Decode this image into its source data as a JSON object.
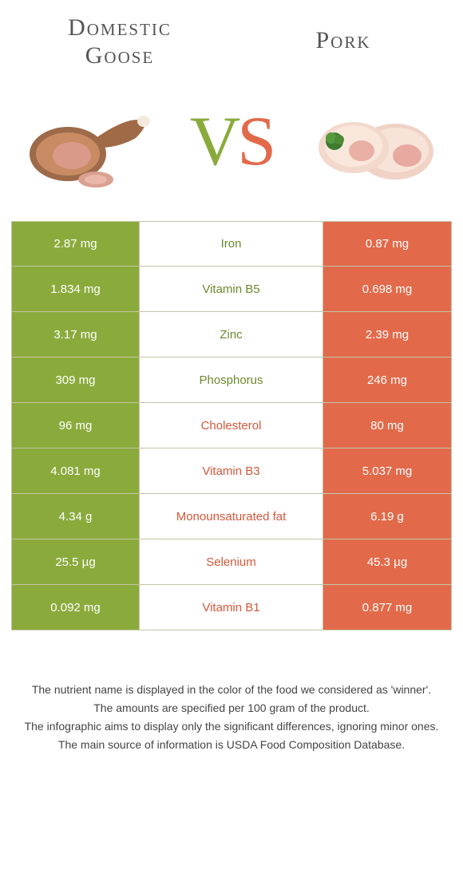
{
  "colors": {
    "green": "#8aab3c",
    "orange": "#e26a4a",
    "green_text": "#6a8a2d",
    "orange_text": "#d4583a",
    "border": "#c4c4a8",
    "body_text": "#444444",
    "title_text": "#555555",
    "background": "#ffffff"
  },
  "typography": {
    "title_font": "Georgia, serif",
    "title_size_pt": 22,
    "vs_size_pt": 66,
    "cell_size_pt": 11,
    "footer_size_pt": 10
  },
  "left": {
    "name": "Domestic\nGoose"
  },
  "right": {
    "name": "Pork"
  },
  "vs": {
    "v": "V",
    "s": "S"
  },
  "rows": [
    {
      "nutrient": "Iron",
      "left": "2.87 mg",
      "right": "0.87 mg",
      "winner": "left"
    },
    {
      "nutrient": "Vitamin B5",
      "left": "1.834 mg",
      "right": "0.698 mg",
      "winner": "left"
    },
    {
      "nutrient": "Zinc",
      "left": "3.17 mg",
      "right": "2.39 mg",
      "winner": "left"
    },
    {
      "nutrient": "Phosphorus",
      "left": "309 mg",
      "right": "246 mg",
      "winner": "left"
    },
    {
      "nutrient": "Cholesterol",
      "left": "96 mg",
      "right": "80 mg",
      "winner": "right"
    },
    {
      "nutrient": "Vitamin B3",
      "left": "4.081 mg",
      "right": "5.037 mg",
      "winner": "right"
    },
    {
      "nutrient": "Monounsaturated fat",
      "left": "4.34 g",
      "right": "6.19 g",
      "winner": "right"
    },
    {
      "nutrient": "Selenium",
      "left": "25.5 µg",
      "right": "45.3 µg",
      "winner": "right"
    },
    {
      "nutrient": "Vitamin B1",
      "left": "0.092 mg",
      "right": "0.877 mg",
      "winner": "right"
    }
  ],
  "footer": {
    "l1": "The nutrient name is displayed in the color of the food we considered as 'winner'.",
    "l2": "The amounts are specified per 100 gram of the product.",
    "l3": "The infographic aims to display only the significant differences, ignoring minor ones.",
    "l4": "The main source of information is USDA Food Composition Database."
  }
}
